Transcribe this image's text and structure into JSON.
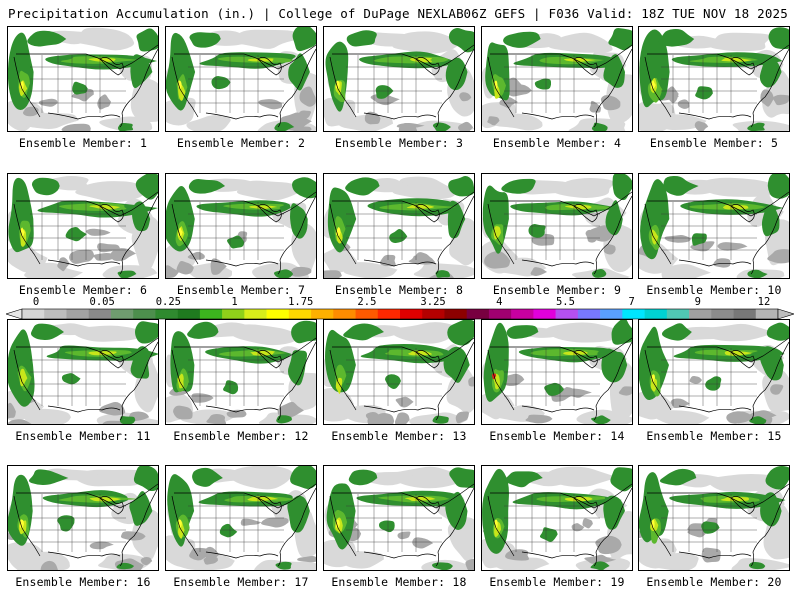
{
  "header": {
    "title_left": "Precipitation Accumulation (in.) | College of DuPage NEXLAB",
    "title_right": "06Z GEFS | F036 Valid: 18Z TUE NOV 18 2025"
  },
  "colorbar": {
    "ticks": [
      "0",
      "0.05",
      "0.25",
      "1",
      "1.75",
      "2.5",
      "3.25",
      "4",
      "5.5",
      "7",
      "9",
      "12"
    ],
    "colors": [
      "#d6d6d6",
      "#bdbdbd",
      "#a3a3a3",
      "#8a8a8a",
      "#6f9c6f",
      "#4d8f4d",
      "#2f8a2f",
      "#1f7a1f",
      "#3cb41e",
      "#8fd11a",
      "#d7ee1a",
      "#ffff00",
      "#ffd800",
      "#ffb000",
      "#ff8c00",
      "#ff5a00",
      "#ff2800",
      "#e00000",
      "#b40000",
      "#8c0000",
      "#780040",
      "#a00070",
      "#c800a0",
      "#e100dc",
      "#b450f0",
      "#7878ff",
      "#5aa0ff",
      "#00e6ff",
      "#00d2d2",
      "#50c8b4",
      "#a0a0a0",
      "#8c8c8c",
      "#787878",
      "#b4b4b4"
    ]
  },
  "map_colors": {
    "land": "#ffffff",
    "light_gray": "#d9d9d9",
    "mid_gray": "#a9a9a9",
    "green": "#2f8f2f",
    "light_green": "#5cb82e",
    "yellow_green": "#c8e61a",
    "yellow": "#ffff33",
    "red": "#e02020"
  },
  "members": [
    {
      "label": "Ensemble Member: 1"
    },
    {
      "label": "Ensemble Member: 2"
    },
    {
      "label": "Ensemble Member: 3"
    },
    {
      "label": "Ensemble Member: 4"
    },
    {
      "label": "Ensemble Member: 5"
    },
    {
      "label": "Ensemble Member: 6"
    },
    {
      "label": "Ensemble Member: 7"
    },
    {
      "label": "Ensemble Member: 8"
    },
    {
      "label": "Ensemble Member: 9"
    },
    {
      "label": "Ensemble Member: 10"
    },
    {
      "label": "Ensemble Member: 11"
    },
    {
      "label": "Ensemble Member: 12"
    },
    {
      "label": "Ensemble Member: 13"
    },
    {
      "label": "Ensemble Member: 14"
    },
    {
      "label": "Ensemble Member: 15"
    },
    {
      "label": "Ensemble Member: 16"
    },
    {
      "label": "Ensemble Member: 17"
    },
    {
      "label": "Ensemble Member: 18"
    },
    {
      "label": "Ensemble Member: 19"
    },
    {
      "label": "Ensemble Member: 20"
    }
  ]
}
